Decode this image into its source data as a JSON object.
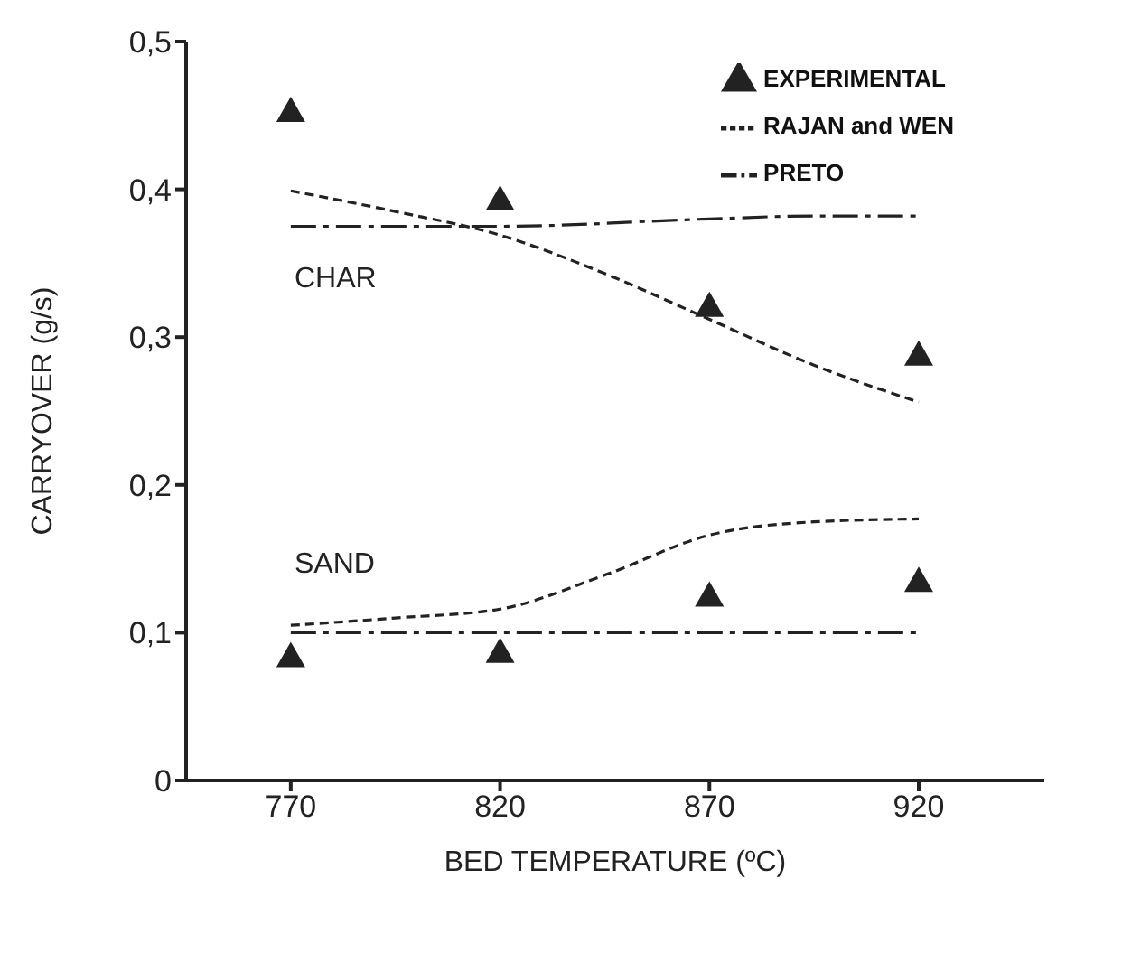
{
  "chart_data": {
    "type": "line",
    "xlabel": "BED TEMPERATURE (ºC)",
    "ylabel": "CARRYOVER (g/s)",
    "xlim": [
      745,
      950
    ],
    "xticks": [
      770,
      820,
      870,
      920
    ],
    "ylim": [
      0,
      0.5
    ],
    "yticks": [
      0,
      {
        "value": 0.1,
        "label": "0,1"
      },
      {
        "value": 0.2,
        "label": "0,2"
      },
      {
        "value": 0.3,
        "label": "0,3"
      },
      {
        "value": 0.4,
        "label": "0,4"
      },
      {
        "value": 0.5,
        "label": "0,5"
      }
    ],
    "legend": "top right",
    "grid": false,
    "series": [
      {
        "name": "EXPERIMENTAL",
        "type": "scatter",
        "marker": "triangle",
        "color": "#222222",
        "x": [
          770,
          820,
          870,
          920
        ],
        "values": [
          0.453,
          0.393,
          0.321,
          0.288
        ]
      },
      {
        "type": "scatter",
        "marker": "triangle",
        "color": "#222222",
        "x": [
          770,
          820,
          870,
          920
        ],
        "values": [
          0.084,
          0.087,
          0.125,
          0.135
        ]
      },
      {
        "name": "RAJAN and WEN",
        "line_style": "dashed",
        "color": "#222222",
        "x": [
          770,
          795,
          820,
          845,
          870,
          895,
          920
        ],
        "values": [
          0.399,
          0.385,
          0.369,
          0.343,
          0.312,
          0.281,
          0.256
        ]
      },
      {
        "line_style": "dashed",
        "color": "#222222",
        "x": [
          770,
          795,
          820,
          845,
          870,
          895,
          920
        ],
        "values": [
          0.105,
          0.11,
          0.116,
          0.139,
          0.166,
          0.175,
          0.177
        ]
      },
      {
        "name": "PRETO",
        "line_style": "dashdot",
        "color": "#222222",
        "x": [
          770,
          820,
          870,
          895,
          920
        ],
        "values": [
          0.375,
          0.375,
          0.38,
          0.382,
          0.382
        ]
      },
      {
        "line_style": "dashdot",
        "color": "#222222",
        "x": [
          770,
          820,
          870,
          920
        ],
        "values": [
          0.1,
          0.1,
          0.1,
          0.1
        ]
      }
    ],
    "annotations": [
      "CHAR",
      "SAND"
    ]
  }
}
